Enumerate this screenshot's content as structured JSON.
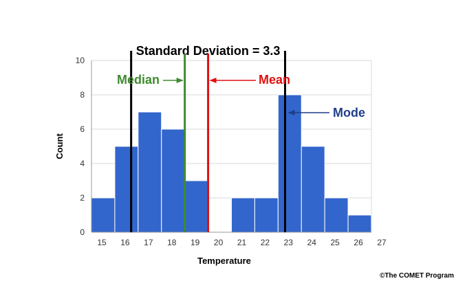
{
  "chart_data": {
    "type": "bar",
    "bin_edges": [
      15,
      16,
      17,
      18,
      19,
      20,
      21,
      22,
      23,
      24,
      25,
      26,
      27
    ],
    "x_ticks": [
      15,
      16,
      17,
      18,
      19,
      20,
      21,
      22,
      23,
      24,
      25,
      26,
      27
    ],
    "values": [
      2,
      5,
      7,
      6,
      3,
      0,
      2,
      2,
      8,
      5,
      2,
      1
    ],
    "xlabel": "Temperature",
    "ylabel": "Count",
    "xlim": [
      15,
      27
    ],
    "ylim": [
      0,
      10
    ],
    "y_ticks": [
      0,
      2,
      4,
      6,
      8,
      10
    ],
    "grid": "horizontal",
    "bar_color": "#3366cc",
    "annotations": {
      "std_dev": {
        "label": "Standard Deviation = 3.3",
        "from": 16.7,
        "to": 23.3,
        "color": "#000000"
      },
      "median": {
        "label": "Median",
        "x": 19.0,
        "color": "#3f8a2f"
      },
      "mean": {
        "label": "Mean",
        "x": 20.0,
        "color": "#e01010"
      },
      "mode": {
        "label": "Mode",
        "x": 23.3,
        "color": "#1f3f8a"
      }
    }
  },
  "credit": "©The COMET Program"
}
